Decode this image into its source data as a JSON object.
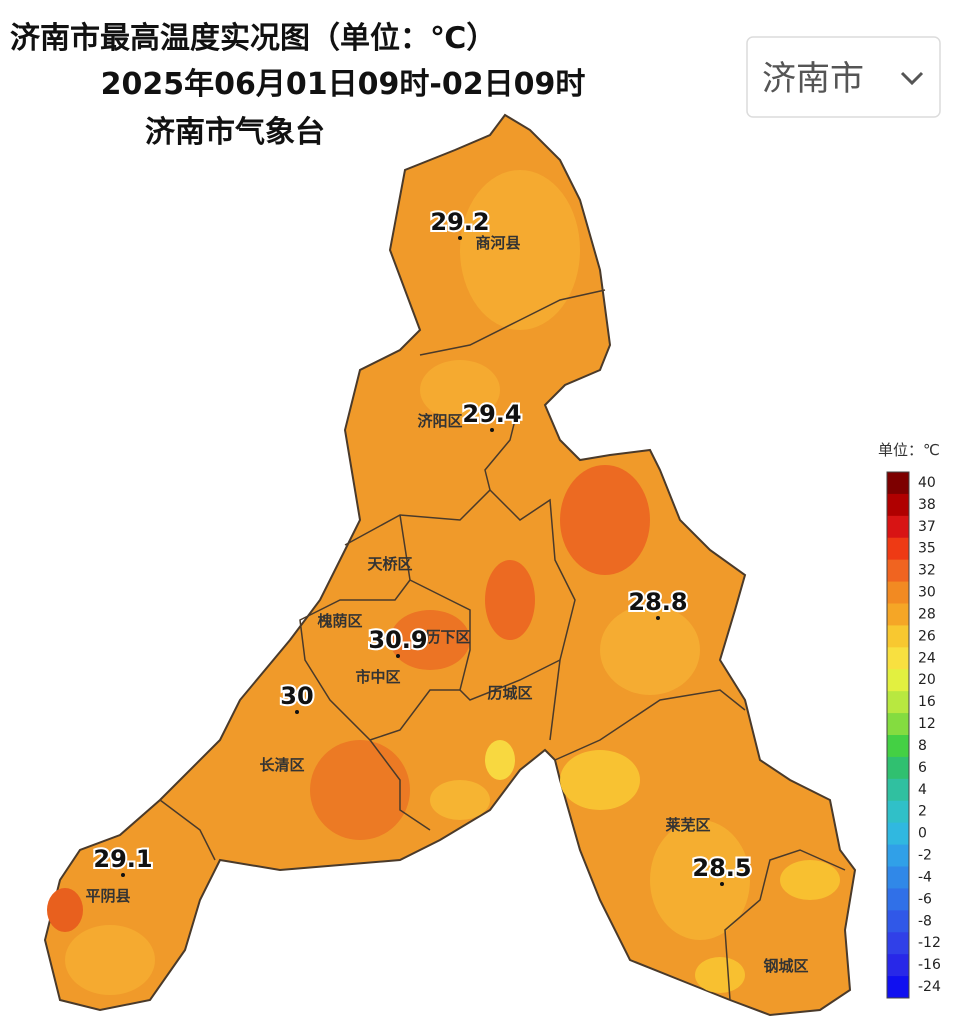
{
  "header": {
    "title": "济南市最高温度实况图（单位：℃）",
    "subtitle": "2025年06月01日09时-02日09时",
    "issuer": "济南市气象台"
  },
  "dropdown": {
    "label": "济南市"
  },
  "legend": {
    "title": "单位：℃",
    "levels": [
      {
        "value": 40,
        "color": "#7d0000"
      },
      {
        "value": 38,
        "color": "#b00000"
      },
      {
        "value": 37,
        "color": "#d81414"
      },
      {
        "value": 35,
        "color": "#ee3a14"
      },
      {
        "value": 32,
        "color": "#f06420"
      },
      {
        "value": 30,
        "color": "#f28a22"
      },
      {
        "value": 28,
        "color": "#f5a626"
      },
      {
        "value": 26,
        "color": "#f8c830"
      },
      {
        "value": 24,
        "color": "#f8e040"
      },
      {
        "value": 20,
        "color": "#e2f040"
      },
      {
        "value": 16,
        "color": "#b8e840"
      },
      {
        "value": 12,
        "color": "#84dc40"
      },
      {
        "value": 8,
        "color": "#44d044"
      },
      {
        "value": 6,
        "color": "#30c070"
      },
      {
        "value": 4,
        "color": "#30c0a0"
      },
      {
        "value": 2,
        "color": "#30c0c8"
      },
      {
        "value": 0,
        "color": "#30b8e0"
      },
      {
        "value": -2,
        "color": "#30a0e8"
      },
      {
        "value": -4,
        "color": "#3088e8"
      },
      {
        "value": -6,
        "color": "#3070e8"
      },
      {
        "value": -8,
        "color": "#3058e8"
      },
      {
        "value": -12,
        "color": "#3040e8"
      },
      {
        "value": -16,
        "color": "#2828e8"
      },
      {
        "value": -24,
        "color": "#1010f0"
      }
    ]
  },
  "districts": [
    {
      "name": "商河县"
    },
    {
      "name": "济阳区"
    },
    {
      "name": "天桥区"
    },
    {
      "name": "槐荫区"
    },
    {
      "name": "历下区"
    },
    {
      "name": "市中区"
    },
    {
      "name": "历城区"
    },
    {
      "name": "长清区"
    },
    {
      "name": "平阴县"
    },
    {
      "name": "莱芜区"
    },
    {
      "name": "钢城区"
    }
  ],
  "stations": [
    {
      "value": 29.2
    },
    {
      "value": 29.4
    },
    {
      "value": 28.8
    },
    {
      "value": 30.9
    },
    {
      "value": 30
    },
    {
      "value": 29.1
    },
    {
      "value": 28.5
    }
  ]
}
